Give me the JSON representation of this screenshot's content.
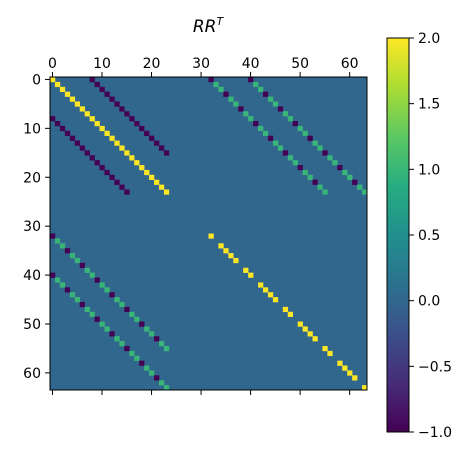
{
  "chart_data": {
    "type": "heatmap",
    "title_base": "RR",
    "title_sup": "T",
    "rows": 64,
    "cols": 64,
    "background_value": 0.0,
    "x_ticks": [
      "0",
      "10",
      "20",
      "30",
      "40",
      "50",
      "60"
    ],
    "y_ticks": [
      "0",
      "10",
      "20",
      "30",
      "40",
      "50",
      "60"
    ],
    "x_tick_values": [
      0,
      10,
      20,
      30,
      40,
      50,
      60
    ],
    "y_tick_values": [
      0,
      10,
      20,
      30,
      40,
      50,
      60
    ],
    "x_axis_position": "top",
    "colormap": "viridis",
    "colorbar": {
      "min": -1.0,
      "max": 2.0,
      "ticks": [
        2.0,
        1.5,
        1.0,
        0.5,
        0.0,
        -0.5,
        -1.0
      ],
      "tick_labels": [
        "2.0",
        "1.5",
        "1.0",
        "0.5",
        "0.0",
        "−0.5",
        "−1.0"
      ]
    },
    "diagonals": [
      {
        "row_start": 0,
        "col_start": 0,
        "length": 24,
        "values": [
          2
        ]
      },
      {
        "row_start": 0,
        "col_start": 8,
        "length": 16,
        "values": [
          -1
        ]
      },
      {
        "row_start": 8,
        "col_start": 0,
        "length": 16,
        "values": [
          -1
        ]
      },
      {
        "row_start": 0,
        "col_start": 32,
        "length": 24,
        "values": [
          -1,
          1,
          1
        ]
      },
      {
        "row_start": 0,
        "col_start": 40,
        "length": 24,
        "values": [
          -1,
          1,
          1
        ]
      },
      {
        "row_start": 32,
        "col_start": 0,
        "length": 24,
        "values": [
          -1,
          1,
          1
        ]
      },
      {
        "row_start": 40,
        "col_start": 0,
        "length": 24,
        "values": [
          -1,
          1,
          1
        ]
      },
      {
        "row_start": 32,
        "col_start": 32,
        "length": 32,
        "values": [
          2,
          0,
          2,
          2,
          2,
          2,
          0,
          2
        ]
      }
    ]
  }
}
